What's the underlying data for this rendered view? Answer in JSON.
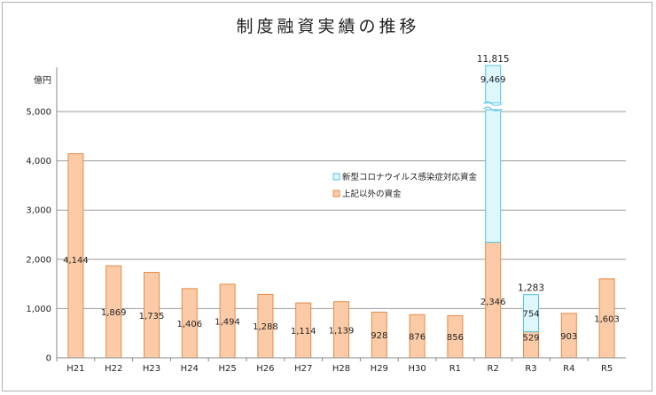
{
  "chart_data": {
    "type": "bar",
    "stacked": true,
    "title": "制度融資実績の推移",
    "unit_label": "億円",
    "categories": [
      "H21",
      "H22",
      "H23",
      "H24",
      "H25",
      "H26",
      "H27",
      "H28",
      "H29",
      "H30",
      "R1",
      "R2",
      "R3",
      "R4",
      "R5"
    ],
    "series": [
      {
        "name": "上記以外の資金",
        "color": "#FBCBA7",
        "edge": "#E58A47",
        "values": [
          4144,
          1869,
          1735,
          1406,
          1494,
          1288,
          1114,
          1139,
          928,
          876,
          856,
          2346,
          529,
          903,
          1603
        ],
        "labels": [
          "4,144",
          "1,869",
          "1,735",
          "1,406",
          "1,494",
          "1,288",
          "1,114",
          "1,139",
          "928",
          "876",
          "856",
          "2,346",
          "529",
          "903",
          "1,603"
        ]
      },
      {
        "name": "新型コロナウイルス感染症対応資金",
        "color": "#DDF7FD",
        "edge": "#4FC4E8",
        "values": [
          null,
          null,
          null,
          null,
          null,
          null,
          null,
          null,
          null,
          null,
          null,
          9469,
          754,
          null,
          null
        ],
        "labels": [
          "",
          "",
          "",
          "",
          "",
          "",
          "",
          "",
          "",
          "",
          "",
          "9,469",
          "754",
          "",
          ""
        ]
      }
    ],
    "totals": {
      "R2": "11,815",
      "R3": "1,283"
    },
    "y_ticks": [
      0,
      1000,
      2000,
      3000,
      4000,
      5000
    ],
    "y_tick_labels": [
      "0",
      "1,000",
      "2,000",
      "3,000",
      "4,000",
      "5,000"
    ],
    "ylim": [
      0,
      5600
    ],
    "axis_break": true,
    "grid": true,
    "legend_position": "center-right"
  }
}
